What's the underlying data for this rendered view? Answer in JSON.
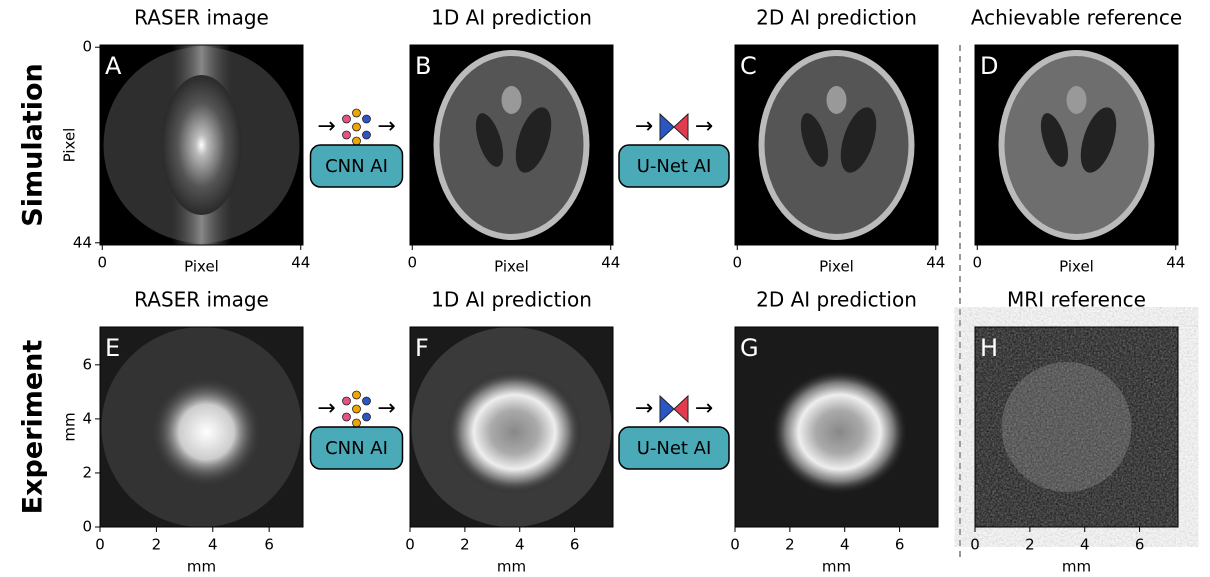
{
  "rows": [
    {
      "label": "Simulation",
      "models": [
        "CNN AI",
        "U-Net AI"
      ],
      "panels": [
        {
          "title": "RASER image",
          "letter": "A",
          "xlabel": "Pixel",
          "ylabel": "Pixel",
          "xlim": [
            -0.5,
            44.5
          ],
          "ylim": [
            44.5,
            -0.5
          ],
          "xticks": [
            0,
            44
          ],
          "yticks": [
            0,
            44
          ]
        },
        {
          "title": "1D AI prediction",
          "letter": "B",
          "xlabel": "Pixel",
          "xlim": [
            -0.5,
            44.5
          ],
          "xticks": [
            0,
            44
          ]
        },
        {
          "title": "2D AI prediction",
          "letter": "C",
          "xlabel": "Pixel",
          "xlim": [
            -0.5,
            44.5
          ],
          "xticks": [
            0,
            44
          ]
        },
        {
          "title": "Achievable reference",
          "letter": "D",
          "xlabel": "Pixel",
          "xlim": [
            -0.5,
            44.5
          ],
          "xticks": [
            0,
            44
          ]
        }
      ]
    },
    {
      "label": "Experiment",
      "models": [
        "CNN AI",
        "U-Net AI"
      ],
      "panels": [
        {
          "title": "RASER image",
          "letter": "E",
          "xlabel": "mm",
          "ylabel": "mm",
          "xlim": [
            0,
            7.2
          ],
          "ylim": [
            0,
            7.4
          ],
          "xticks": [
            0,
            2,
            4,
            6
          ],
          "yticks": [
            0,
            2,
            4,
            6
          ]
        },
        {
          "title": "1D AI prediction",
          "letter": "F",
          "xlabel": "mm",
          "xlim": [
            0,
            7.4
          ],
          "xticks": [
            0,
            2,
            4,
            6
          ]
        },
        {
          "title": "2D AI prediction",
          "letter": "G",
          "xlabel": "mm",
          "xlim": [
            0,
            7.4
          ],
          "xticks": [
            0,
            2,
            4,
            6
          ]
        },
        {
          "title": "MRI reference",
          "letter": "H",
          "xlabel": "mm",
          "xlim": [
            0,
            7.4
          ],
          "xticks": [
            0,
            2,
            4,
            6
          ]
        }
      ]
    }
  ]
}
